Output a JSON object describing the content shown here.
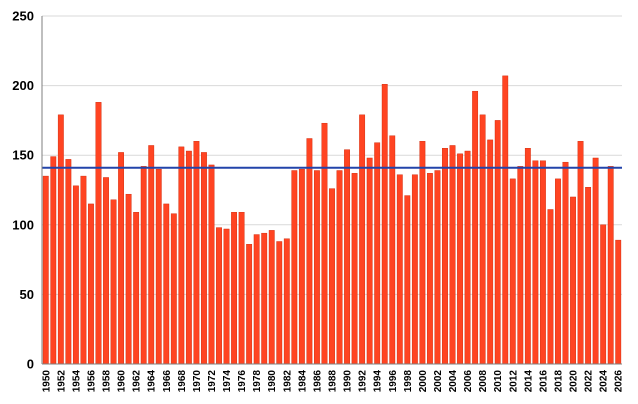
{
  "chart_data": {
    "type": "bar",
    "title": "",
    "xlabel": "",
    "ylabel": "",
    "ylim": [
      0,
      250
    ],
    "yticks": [
      0,
      50,
      100,
      150,
      200,
      250
    ],
    "grid": true,
    "legend": "none",
    "bar_color": "#ff4422",
    "bar_edge_color": "#cc2200",
    "reference_line": {
      "value": 141,
      "color": "#2244aa"
    },
    "xtick_labels": [
      "1950",
      "1952",
      "1954",
      "1956",
      "1958",
      "1960",
      "1962",
      "1964",
      "1966",
      "1968",
      "1970",
      "1972",
      "1974",
      "1976",
      "1978",
      "1980",
      "1982",
      "1984",
      "1986",
      "1988",
      "1990",
      "1992",
      "1994",
      "1996",
      "1998",
      "2000",
      "2002",
      "2004",
      "2006",
      "2008",
      "2010",
      "2012",
      "2014",
      "2016",
      "2018",
      "2020",
      "2022",
      "2024",
      "2026"
    ],
    "categories": [
      1950,
      1951,
      1952,
      1953,
      1954,
      1955,
      1956,
      1957,
      1958,
      1959,
      1960,
      1961,
      1962,
      1963,
      1964,
      1965,
      1966,
      1967,
      1968,
      1969,
      1970,
      1971,
      1972,
      1973,
      1974,
      1975,
      1976,
      1977,
      1978,
      1979,
      1980,
      1981,
      1982,
      1983,
      1984,
      1985,
      1986,
      1987,
      1988,
      1989,
      1990,
      1991,
      1992,
      1993,
      1994,
      1995,
      1996,
      1997,
      1998,
      1999,
      2000,
      2001,
      2002,
      2003,
      2004,
      2005,
      2006,
      2007,
      2008,
      2009,
      2010,
      2011,
      2012,
      2013,
      2014,
      2015,
      2016,
      2017,
      2018,
      2019,
      2020,
      2021,
      2022,
      2023,
      2024,
      2025,
      2026
    ],
    "values": [
      135,
      149,
      179,
      147,
      128,
      135,
      115,
      188,
      134,
      118,
      152,
      122,
      109,
      142,
      157,
      140,
      115,
      108,
      156,
      153,
      160,
      152,
      143,
      98,
      97,
      109,
      109,
      86,
      93,
      94,
      96,
      88,
      90,
      139,
      140,
      162,
      139,
      173,
      126,
      139,
      154,
      137,
      179,
      148,
      159,
      201,
      164,
      136,
      121,
      136,
      160,
      137,
      139,
      155,
      157,
      151,
      153,
      196,
      179,
      161,
      175,
      207,
      133,
      142,
      155,
      146,
      146,
      111,
      133,
      145,
      120,
      160,
      127,
      148,
      100,
      142,
      89
    ]
  }
}
